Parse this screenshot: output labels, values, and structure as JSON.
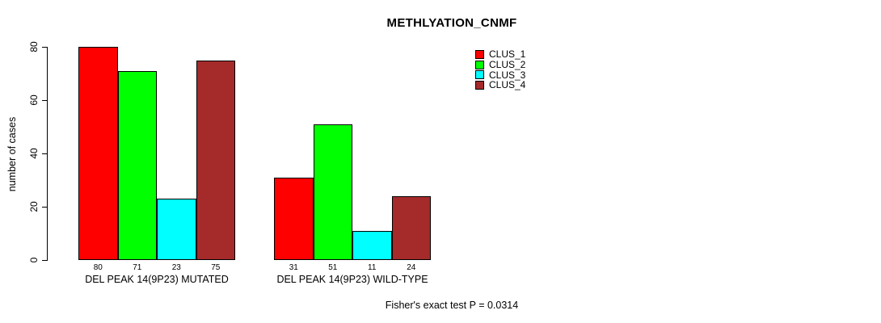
{
  "chart": {
    "title": "METHLYATION_CNMF",
    "ylabel": "number of cases",
    "footer": "Fisher's exact test P = 0.0314"
  },
  "chart_data": {
    "type": "bar",
    "title": "METHLYATION_CNMF",
    "xlabel": "",
    "ylabel": "number of cases",
    "ylim": [
      0,
      80
    ],
    "yticks": [
      0,
      20,
      40,
      60,
      80
    ],
    "grid": false,
    "legend_position": "top-right",
    "categories": [
      "DEL PEAK 14(9P23) MUTATED",
      "DEL PEAK 14(9P23) WILD-TYPE"
    ],
    "series": [
      {
        "name": "CLUS_1",
        "color": "#ff0000",
        "values": [
          80,
          31
        ]
      },
      {
        "name": "CLUS_2",
        "color": "#00ff00",
        "values": [
          71,
          51
        ]
      },
      {
        "name": "CLUS_3",
        "color": "#00ffff",
        "values": [
          23,
          11
        ]
      },
      {
        "name": "CLUS_4",
        "color": "#a52a2a",
        "values": [
          75,
          24
        ]
      }
    ],
    "bar_value_labels": [
      [
        80,
        71,
        23,
        75
      ],
      [
        31,
        51,
        11,
        24
      ]
    ],
    "annotation": "Fisher's exact test P = 0.0314"
  }
}
